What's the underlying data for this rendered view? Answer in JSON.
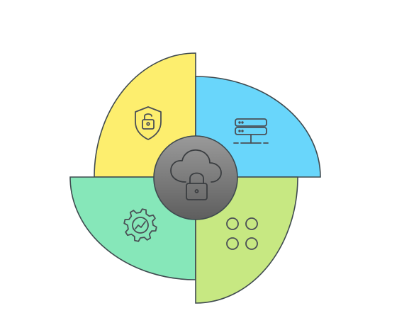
{
  "diagram": {
    "type": "quadrant-pinwheel",
    "center": {
      "icon": "cloud-lock-icon",
      "fill_top": "#9a9a9a",
      "fill_bottom": "#5e5e5e"
    },
    "quadrants": [
      {
        "position": "top-left",
        "icon": "shield-lock-icon",
        "color": "#fdee6e"
      },
      {
        "position": "top-right",
        "icon": "server-icon",
        "color": "#69d6fb"
      },
      {
        "position": "bottom-left",
        "icon": "gear-chart-icon",
        "color": "#86e7b9"
      },
      {
        "position": "bottom-right",
        "icon": "grid-circles-icon",
        "color": "#c7e882"
      }
    ],
    "outline_color": "#3f4a4f",
    "icon_color": "#4a4f55"
  }
}
